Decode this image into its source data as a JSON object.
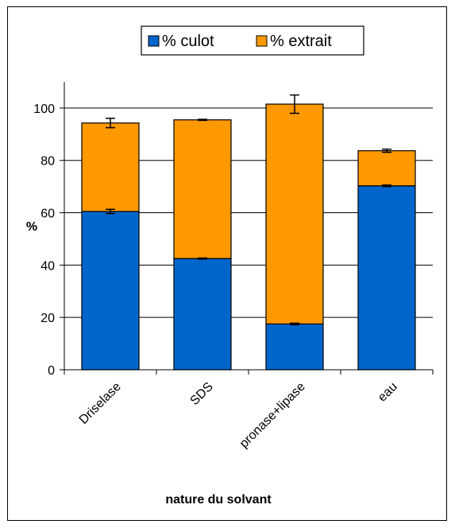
{
  "chart_data": {
    "type": "bar",
    "stacked": true,
    "categories": [
      "Driselase",
      "SDS",
      "pronase+lipase",
      "eau"
    ],
    "series": [
      {
        "name": "% culot",
        "color": "#0066CC",
        "values": [
          60.5,
          42.5,
          17.5,
          70.3
        ],
        "error": [
          0.8,
          0.2,
          0.3,
          0.3
        ]
      },
      {
        "name": "% extrait",
        "color": "#FF9900",
        "values": [
          33.8,
          53.0,
          84.0,
          13.4
        ],
        "error": [
          1.8,
          0.2,
          3.5,
          0.6
        ]
      }
    ],
    "xlabel": "nature du solvant",
    "ylabel": "%",
    "ylim": [
      0,
      100
    ],
    "yticks": [
      0,
      20,
      40,
      60,
      80,
      100
    ],
    "grid": true,
    "legend_position": "top"
  }
}
